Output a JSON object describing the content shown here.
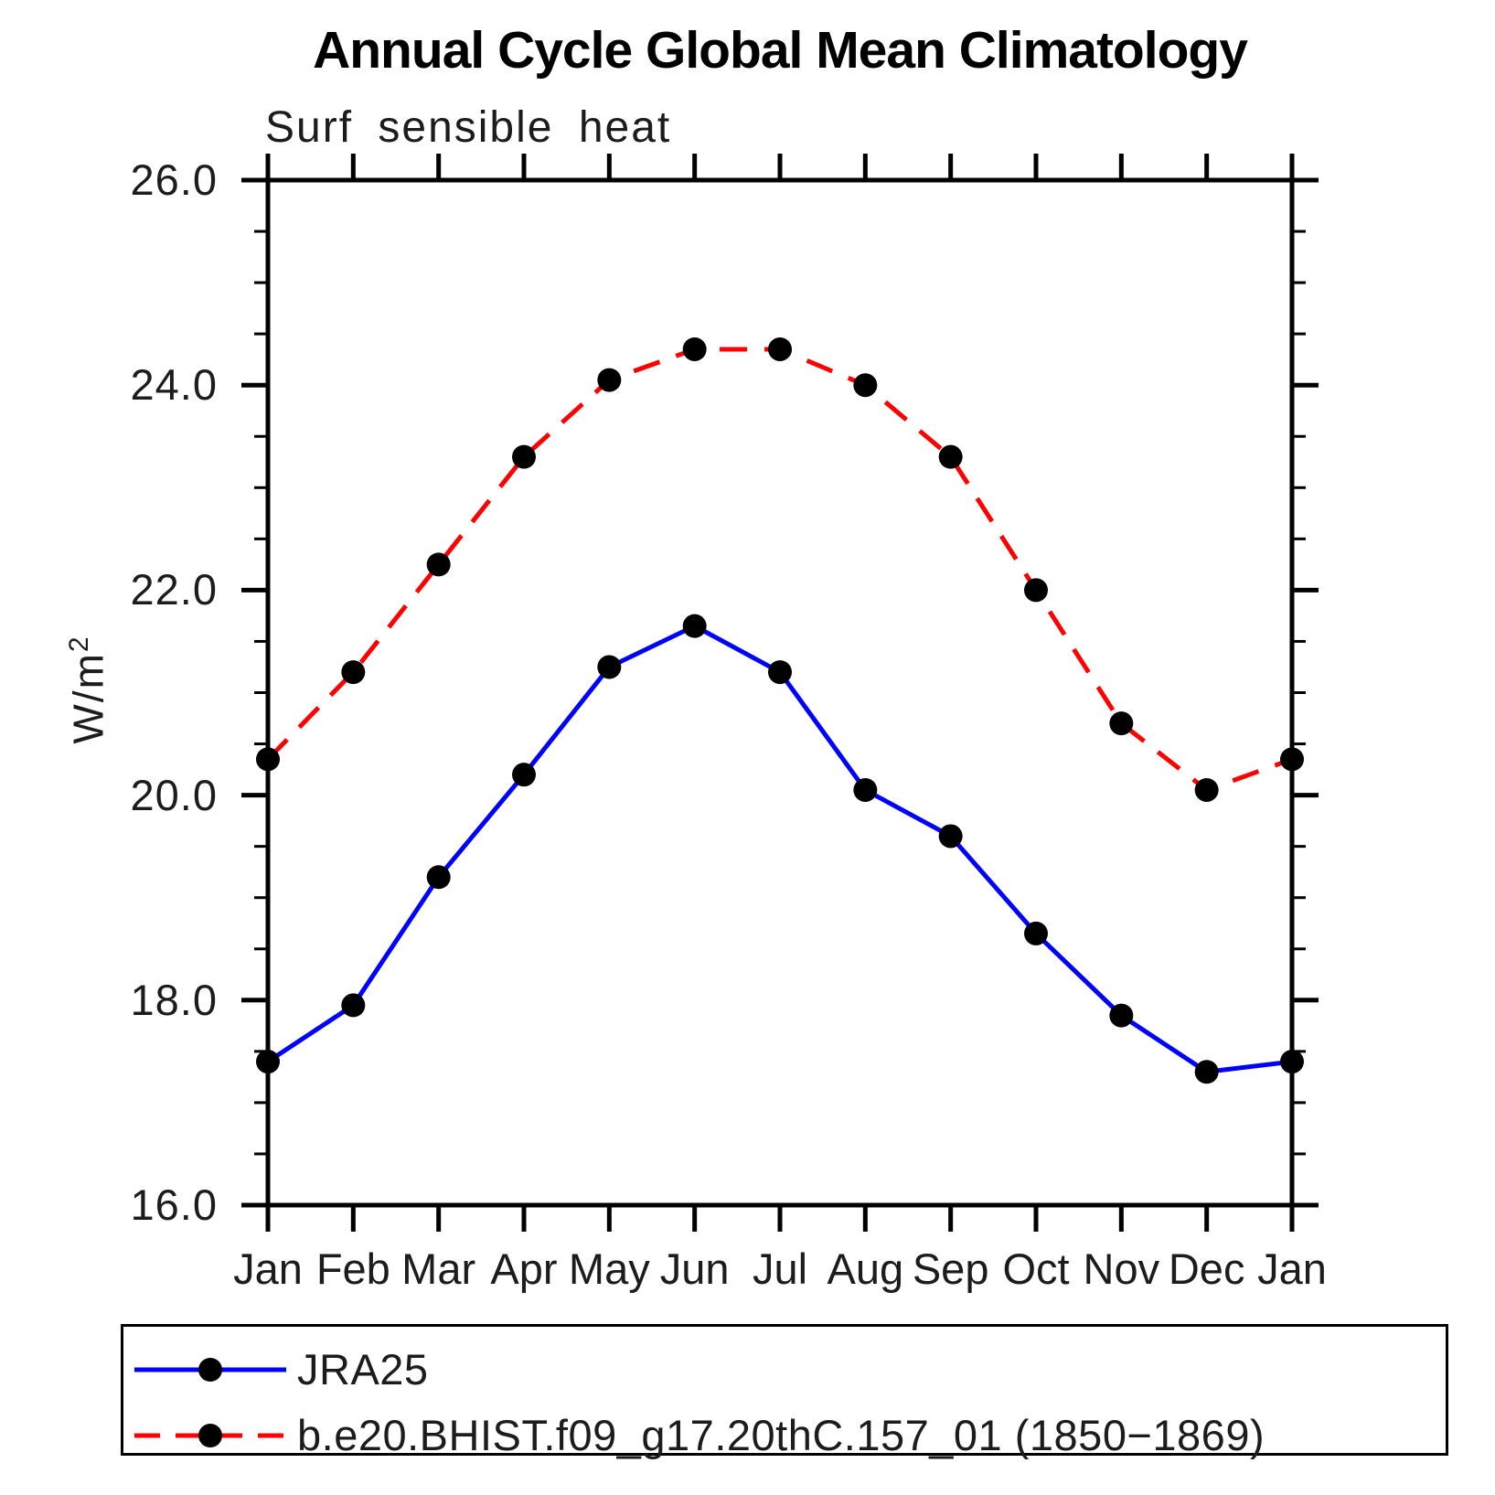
{
  "header": {
    "title": "Annual Cycle Global Mean Climatology",
    "subtitle": "Surf sensible heat"
  },
  "y_axis": {
    "label_base": "W/m",
    "label_exponent": "2",
    "tick_labels": [
      "26.0",
      "24.0",
      "22.0",
      "20.0",
      "18.0",
      "16.0"
    ]
  },
  "x_axis": {
    "tick_labels": [
      "Jan",
      "Feb",
      "Mar",
      "Apr",
      "May",
      "Jun",
      "Jul",
      "Aug",
      "Sep",
      "Oct",
      "Nov",
      "Dec",
      "Jan"
    ]
  },
  "colors": {
    "jra25_line": "#0000ff",
    "model_line": "#ff0000",
    "marker": "#000000",
    "axis": "#000000"
  },
  "chart_data": {
    "type": "line",
    "title": "Annual Cycle Global Mean Climatology",
    "subtitle": "Surf sensible heat",
    "ylabel": "W/m²",
    "xlabel": "",
    "x_categories": [
      "Jan",
      "Feb",
      "Mar",
      "Apr",
      "May",
      "Jun",
      "Jul",
      "Aug",
      "Sep",
      "Oct",
      "Nov",
      "Dec",
      "Jan"
    ],
    "ylim": [
      16.0,
      26.0
    ],
    "y_major_tick_step": 2.0,
    "y_minor_tick_step": 0.5,
    "grid": false,
    "legend_position": "bottom-left-box",
    "series": [
      {
        "name": "JRA25",
        "line_color": "#0000ff",
        "line_style": "solid",
        "marker": "filled-circle",
        "marker_color": "#000000",
        "values": [
          17.4,
          17.95,
          19.2,
          20.2,
          21.25,
          21.65,
          21.2,
          20.05,
          19.6,
          18.65,
          17.85,
          17.3,
          17.4
        ]
      },
      {
        "name": "b.e20.BHIST.f09_g17.20thC.157_01 (1850−1869)",
        "line_color": "#ff0000",
        "line_style": "dashed",
        "marker": "filled-circle",
        "marker_color": "#000000",
        "values": [
          20.35,
          21.2,
          22.25,
          23.3,
          24.05,
          24.35,
          24.35,
          24.0,
          23.3,
          22.0,
          20.7,
          20.05,
          20.35
        ]
      }
    ]
  },
  "legend": {
    "entries": [
      {
        "label": "JRA25"
      },
      {
        "label": "b.e20.BHIST.f09_g17.20thC.157_01 (1850−1869)"
      }
    ]
  }
}
